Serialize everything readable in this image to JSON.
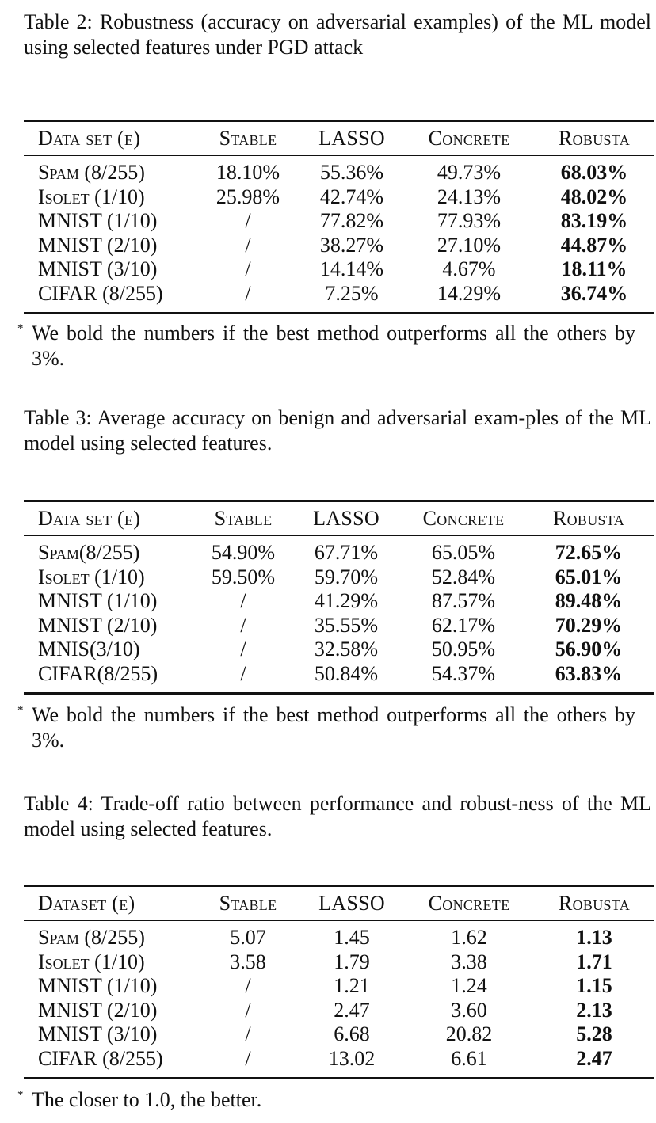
{
  "tables": [
    {
      "caption": "Table 2: Robustness (accuracy on adversarial examples) of the ML model using selected features under PGD attack",
      "headers": [
        "Data set (ϵ)",
        "Stable",
        "LASSO",
        "Concrete",
        "Robusta"
      ],
      "rows": [
        [
          "Spam (8/255)",
          "18.10%",
          "55.36%",
          "49.73%",
          "68.03%"
        ],
        [
          "Isolet (1/10)",
          "25.98%",
          "42.74%",
          "24.13%",
          "48.02%"
        ],
        [
          "MNIST (1/10)",
          "/",
          "77.82%",
          "77.93%",
          "83.19%"
        ],
        [
          "MNIST (2/10)",
          "/",
          "38.27%",
          "27.10%",
          "44.87%"
        ],
        [
          "MNIST (3/10)",
          "/",
          "14.14%",
          "4.67%",
          "18.11%"
        ],
        [
          "CIFAR (8/255)",
          "/",
          "7.25%",
          "14.29%",
          "36.74%"
        ]
      ],
      "bold_column": "Robusta",
      "note_marker": "*",
      "note": "We bold the numbers if the best method outperforms all the others by 3%."
    },
    {
      "caption": "Table 3: Average accuracy on benign and adversarial exam-ples of the ML model using selected features.",
      "headers": [
        "Data set (ϵ)",
        "Stable",
        "LASSO",
        "Concrete",
        "Robusta"
      ],
      "rows": [
        [
          "Spam(8/255)",
          "54.90%",
          "67.71%",
          "65.05%",
          "72.65%"
        ],
        [
          "Isolet (1/10)",
          "59.50%",
          "59.70%",
          "52.84%",
          "65.01%"
        ],
        [
          "MNIST (1/10)",
          "/",
          "41.29%",
          "87.57%",
          "89.48%"
        ],
        [
          "MNIST (2/10)",
          "/",
          "35.55%",
          "62.17%",
          "70.29%"
        ],
        [
          "MNIS(3/10)",
          "/",
          "32.58%",
          "50.95%",
          "56.90%"
        ],
        [
          "CIFAR(8/255)",
          "/",
          "50.84%",
          "54.37%",
          "63.83%"
        ]
      ],
      "bold_column": "Robusta",
      "note_marker": "*",
      "note": "We bold the numbers if the best method outperforms all the others by 3%."
    },
    {
      "caption": "Table 4: Trade-off ratio between performance and robust-ness of the ML model using selected features.",
      "headers": [
        "Dataset (ϵ)",
        "Stable",
        "LASSO",
        "Concrete",
        "Robusta"
      ],
      "rows": [
        [
          "Spam (8/255)",
          "5.07",
          "1.45",
          "1.62",
          "1.13"
        ],
        [
          "Isolet (1/10)",
          "3.58",
          "1.79",
          "3.38",
          "1.71"
        ],
        [
          "MNIST (1/10)",
          "/",
          "1.21",
          "1.24",
          "1.15"
        ],
        [
          "MNIST (2/10)",
          "/",
          "2.47",
          "3.60",
          "2.13"
        ],
        [
          "MNIST (3/10)",
          "/",
          "6.68",
          "20.82",
          "5.28"
        ],
        [
          "CIFAR (8/255)",
          "/",
          "13.02",
          "6.61",
          "2.47"
        ]
      ],
      "bold_column": "Robusta",
      "note_marker": "*",
      "note": "The closer to 1.0, the better."
    }
  ]
}
